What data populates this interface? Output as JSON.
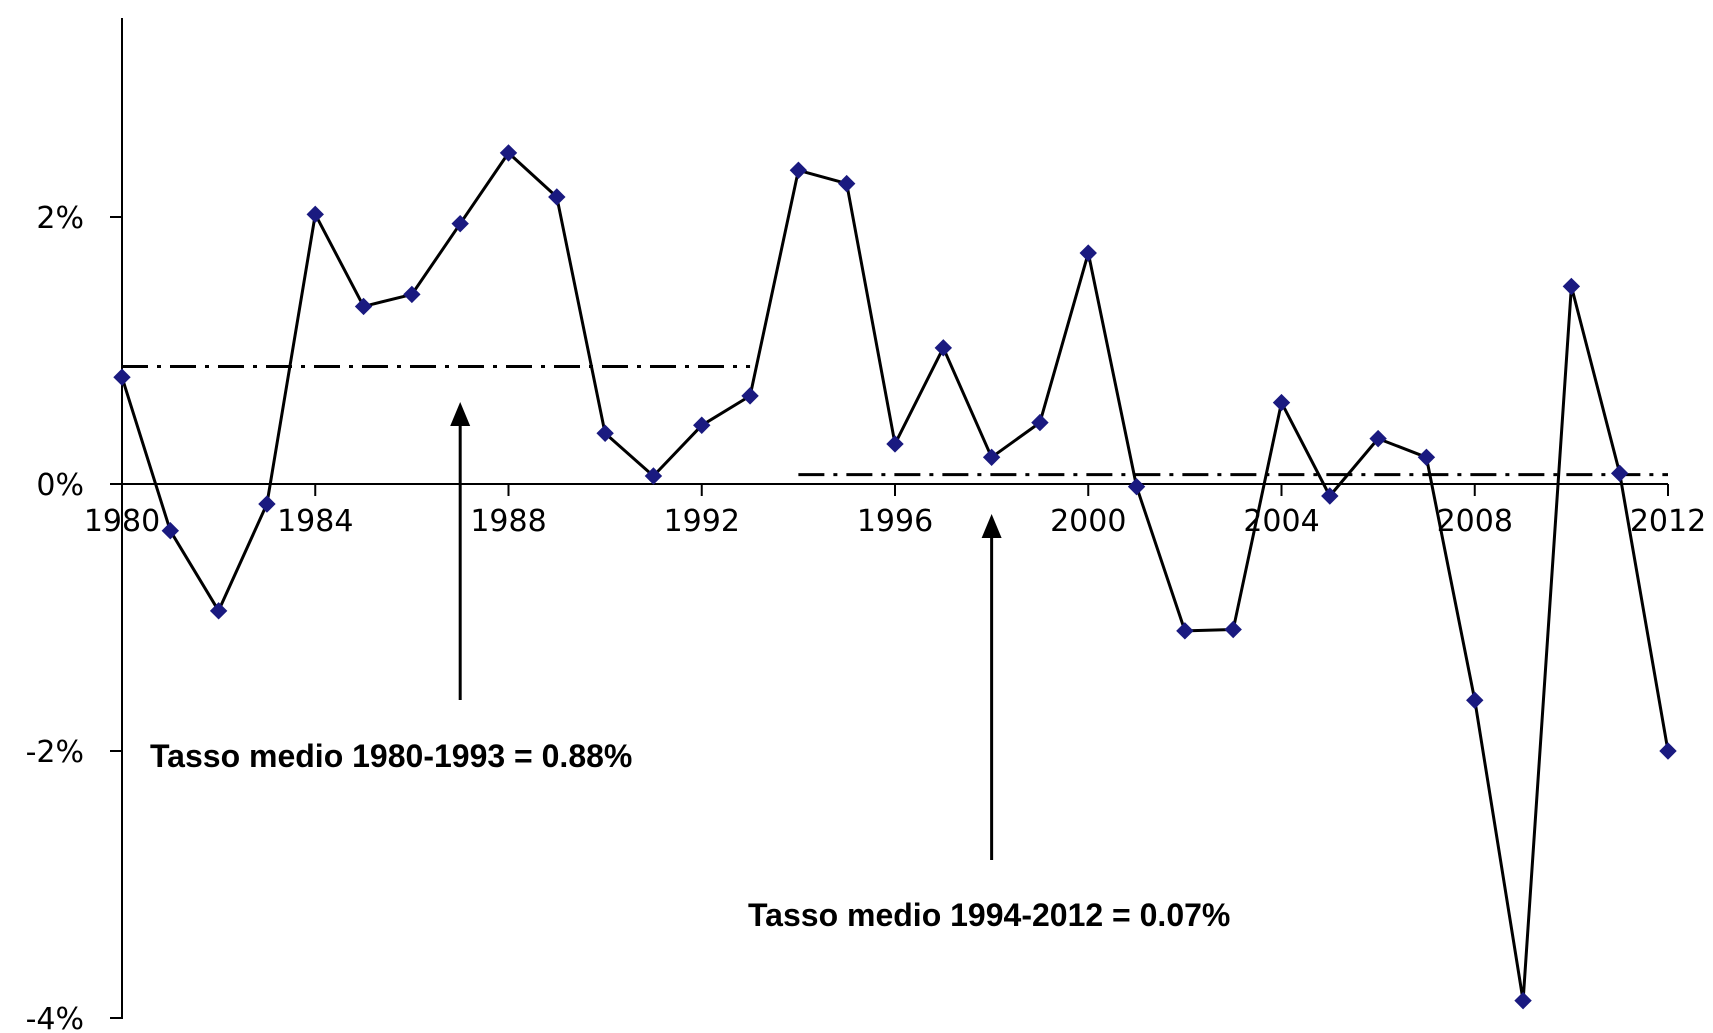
{
  "chart_data": {
    "type": "line",
    "title": "",
    "xlabel": "",
    "ylabel": "",
    "x": [
      1980,
      1981,
      1982,
      1983,
      1984,
      1985,
      1986,
      1987,
      1988,
      1989,
      1990,
      1991,
      1992,
      1993,
      1994,
      1995,
      1996,
      1997,
      1998,
      1999,
      2000,
      2001,
      2002,
      2003,
      2004,
      2005,
      2006,
      2007,
      2008,
      2009,
      2010,
      2011,
      2012
    ],
    "series": [
      {
        "values": [
          0.8,
          -0.35,
          -0.95,
          -0.15,
          2.02,
          1.33,
          1.42,
          1.95,
          2.48,
          2.15,
          0.38,
          0.06,
          0.44,
          0.66,
          2.35,
          2.25,
          0.3,
          1.02,
          0.2,
          0.46,
          1.73,
          -0.02,
          -1.1,
          -1.09,
          0.61,
          -0.09,
          0.34,
          0.2,
          -1.62,
          -3.87,
          1.48,
          0.08,
          -2.0
        ],
        "color": "#000000",
        "marker_color": "#1a1a80"
      }
    ],
    "ylim": [
      -4,
      4
    ],
    "xlim": [
      1980,
      2012
    ],
    "x_ticks": [
      1980,
      1984,
      1988,
      1992,
      1996,
      2000,
      2004,
      2008,
      2012
    ],
    "x_tick_labels": [
      "1980",
      "1984",
      "1988",
      "1992",
      "1996",
      "2000",
      "2004",
      "2008",
      "2012"
    ],
    "y_ticks": [
      -4,
      -2,
      0,
      2
    ],
    "y_tick_labels": [
      "-4%",
      "-2%",
      "0%",
      "2%"
    ],
    "grid": false,
    "reference_lines": [
      {
        "x_start": 1980,
        "x_end": 1993,
        "y": 0.88
      },
      {
        "x_start": 1994,
        "x_end": 2012,
        "y": 0.07
      }
    ],
    "annotations": [
      {
        "text": "Tasso medio 1980-1993  = 0.88%",
        "arrow_x": 1987
      },
      {
        "text": "Tasso medio 1994-2012  = 0.07%",
        "arrow_x": 1998
      }
    ]
  }
}
